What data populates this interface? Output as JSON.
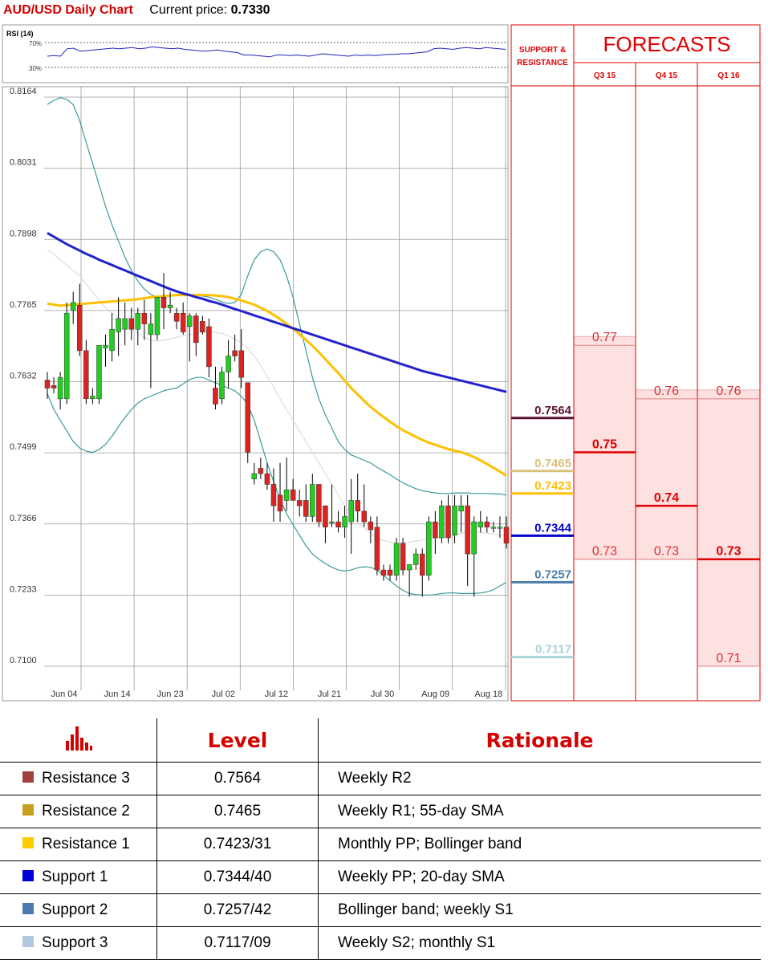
{
  "header": {
    "title": "AUD/USD Daily Chart",
    "price_label": "Current price:",
    "price_value": "0.7330"
  },
  "colors": {
    "bull": "#22cc22",
    "bear": "#dd2222",
    "sma200": "#2222cc",
    "sma55": "#ffc000",
    "sma20": "#dddddd",
    "bands": "#3a9a9a",
    "forecast_fill": "#fde0e0",
    "forecast_line": "#e00000"
  },
  "chart_data": {
    "type": "candlestick",
    "title": "AUD/USD Daily Chart",
    "ylim": [
      0.71,
      0.8164
    ],
    "y_ticks": [
      "0.8164",
      "0.8031",
      "0.7898",
      "0.7765",
      "0.7632",
      "0.7499",
      "0.7366",
      "0.7233",
      "0.7100"
    ],
    "x_ticks": [
      "Jun 04",
      "Jun 14",
      "Jun 23",
      "Jul 02",
      "Jul 12",
      "Jul 21",
      "Jul 30",
      "Aug 09",
      "Aug 18"
    ],
    "rsi": {
      "label": "RSI (14)",
      "levels": [
        "70%",
        "30%"
      ],
      "values": [
        48,
        49,
        48,
        60,
        61,
        56,
        57,
        58,
        59,
        60,
        61,
        60,
        61,
        62,
        60,
        61,
        63,
        62,
        61,
        60,
        61,
        59,
        58,
        57,
        56,
        57,
        58,
        56,
        55,
        54,
        50,
        50,
        49,
        48,
        47,
        50,
        50,
        49,
        50,
        49,
        48,
        50,
        52,
        51,
        50,
        49,
        48,
        50,
        49,
        50,
        49,
        50,
        51,
        51,
        52,
        52,
        53,
        54,
        55,
        60,
        61,
        60,
        59,
        61,
        62,
        61,
        60,
        62,
        61,
        60,
        59
      ]
    },
    "candles": [
      {
        "o": 0.7635,
        "h": 0.765,
        "l": 0.76,
        "c": 0.762
      },
      {
        "o": 0.7625,
        "h": 0.764,
        "l": 0.761,
        "c": 0.762
      },
      {
        "o": 0.76,
        "h": 0.765,
        "l": 0.758,
        "c": 0.764
      },
      {
        "o": 0.76,
        "h": 0.778,
        "l": 0.759,
        "c": 0.776
      },
      {
        "o": 0.7765,
        "h": 0.78,
        "l": 0.774,
        "c": 0.778
      },
      {
        "o": 0.7775,
        "h": 0.7815,
        "l": 0.768,
        "c": 0.769
      },
      {
        "o": 0.769,
        "h": 0.771,
        "l": 0.759,
        "c": 0.76
      },
      {
        "o": 0.76,
        "h": 0.762,
        "l": 0.759,
        "c": 0.7605
      },
      {
        "o": 0.76,
        "h": 0.77,
        "l": 0.759,
        "c": 0.77
      },
      {
        "o": 0.7695,
        "h": 0.772,
        "l": 0.766,
        "c": 0.77
      },
      {
        "o": 0.769,
        "h": 0.776,
        "l": 0.767,
        "c": 0.773
      },
      {
        "o": 0.7725,
        "h": 0.779,
        "l": 0.768,
        "c": 0.775
      },
      {
        "o": 0.773,
        "h": 0.778,
        "l": 0.77,
        "c": 0.775
      },
      {
        "o": 0.775,
        "h": 0.777,
        "l": 0.771,
        "c": 0.773
      },
      {
        "o": 0.773,
        "h": 0.777,
        "l": 0.77,
        "c": 0.776
      },
      {
        "o": 0.776,
        "h": 0.7785,
        "l": 0.771,
        "c": 0.774
      },
      {
        "o": 0.772,
        "h": 0.776,
        "l": 0.762,
        "c": 0.774
      },
      {
        "o": 0.772,
        "h": 0.779,
        "l": 0.771,
        "c": 0.779
      },
      {
        "o": 0.779,
        "h": 0.7835,
        "l": 0.773,
        "c": 0.777
      },
      {
        "o": 0.777,
        "h": 0.78,
        "l": 0.776,
        "c": 0.7775
      },
      {
        "o": 0.776,
        "h": 0.777,
        "l": 0.773,
        "c": 0.7745
      },
      {
        "o": 0.776,
        "h": 0.778,
        "l": 0.772,
        "c": 0.7725
      },
      {
        "o": 0.7735,
        "h": 0.776,
        "l": 0.767,
        "c": 0.7755
      },
      {
        "o": 0.7755,
        "h": 0.776,
        "l": 0.768,
        "c": 0.7705
      },
      {
        "o": 0.7745,
        "h": 0.7755,
        "l": 0.772,
        "c": 0.7725
      },
      {
        "o": 0.7735,
        "h": 0.775,
        "l": 0.764,
        "c": 0.766
      },
      {
        "o": 0.762,
        "h": 0.766,
        "l": 0.758,
        "c": 0.759
      },
      {
        "o": 0.76,
        "h": 0.766,
        "l": 0.759,
        "c": 0.765
      },
      {
        "o": 0.765,
        "h": 0.771,
        "l": 0.762,
        "c": 0.768
      },
      {
        "o": 0.769,
        "h": 0.772,
        "l": 0.767,
        "c": 0.768
      },
      {
        "o": 0.769,
        "h": 0.773,
        "l": 0.762,
        "c": 0.764
      },
      {
        "o": 0.763,
        "h": 0.763,
        "l": 0.748,
        "c": 0.75
      },
      {
        "o": 0.745,
        "h": 0.748,
        "l": 0.744,
        "c": 0.746
      },
      {
        "o": 0.747,
        "h": 0.749,
        "l": 0.745,
        "c": 0.746
      },
      {
        "o": 0.746,
        "h": 0.748,
        "l": 0.743,
        "c": 0.744
      },
      {
        "o": 0.744,
        "h": 0.747,
        "l": 0.737,
        "c": 0.74
      },
      {
        "o": 0.742,
        "h": 0.748,
        "l": 0.737,
        "c": 0.739
      },
      {
        "o": 0.741,
        "h": 0.749,
        "l": 0.739,
        "c": 0.743
      },
      {
        "o": 0.743,
        "h": 0.745,
        "l": 0.741,
        "c": 0.741
      },
      {
        "o": 0.741,
        "h": 0.743,
        "l": 0.738,
        "c": 0.74
      },
      {
        "o": 0.741,
        "h": 0.744,
        "l": 0.737,
        "c": 0.738
      },
      {
        "o": 0.738,
        "h": 0.746,
        "l": 0.737,
        "c": 0.744
      },
      {
        "o": 0.744,
        "h": 0.744,
        "l": 0.736,
        "c": 0.737
      },
      {
        "o": 0.74,
        "h": 0.74,
        "l": 0.733,
        "c": 0.736
      },
      {
        "o": 0.737,
        "h": 0.744,
        "l": 0.736,
        "c": 0.737
      },
      {
        "o": 0.737,
        "h": 0.739,
        "l": 0.735,
        "c": 0.736
      },
      {
        "o": 0.736,
        "h": 0.74,
        "l": 0.734,
        "c": 0.738
      },
      {
        "o": 0.737,
        "h": 0.745,
        "l": 0.731,
        "c": 0.741
      },
      {
        "o": 0.741,
        "h": 0.746,
        "l": 0.737,
        "c": 0.739
      },
      {
        "o": 0.739,
        "h": 0.744,
        "l": 0.736,
        "c": 0.737
      },
      {
        "o": 0.737,
        "h": 0.738,
        "l": 0.733,
        "c": 0.7355
      },
      {
        "o": 0.736,
        "h": 0.738,
        "l": 0.727,
        "c": 0.728
      },
      {
        "o": 0.728,
        "h": 0.729,
        "l": 0.726,
        "c": 0.727
      },
      {
        "o": 0.728,
        "h": 0.729,
        "l": 0.726,
        "c": 0.727
      },
      {
        "o": 0.727,
        "h": 0.734,
        "l": 0.726,
        "c": 0.733
      },
      {
        "o": 0.733,
        "h": 0.734,
        "l": 0.727,
        "c": 0.728
      },
      {
        "o": 0.728,
        "h": 0.729,
        "l": 0.723,
        "c": 0.729
      },
      {
        "o": 0.729,
        "h": 0.732,
        "l": 0.728,
        "c": 0.731
      },
      {
        "o": 0.731,
        "h": 0.732,
        "l": 0.723,
        "c": 0.727
      },
      {
        "o": 0.727,
        "h": 0.738,
        "l": 0.726,
        "c": 0.737
      },
      {
        "o": 0.737,
        "h": 0.739,
        "l": 0.731,
        "c": 0.734
      },
      {
        "o": 0.734,
        "h": 0.741,
        "l": 0.733,
        "c": 0.74
      },
      {
        "o": 0.74,
        "h": 0.742,
        "l": 0.733,
        "c": 0.734
      },
      {
        "o": 0.7345,
        "h": 0.742,
        "l": 0.733,
        "c": 0.74
      },
      {
        "o": 0.739,
        "h": 0.742,
        "l": 0.735,
        "c": 0.74
      },
      {
        "o": 0.74,
        "h": 0.742,
        "l": 0.725,
        "c": 0.731
      },
      {
        "o": 0.731,
        "h": 0.738,
        "l": 0.723,
        "c": 0.737
      },
      {
        "o": 0.736,
        "h": 0.739,
        "l": 0.735,
        "c": 0.737
      },
      {
        "o": 0.737,
        "h": 0.738,
        "l": 0.735,
        "c": 0.736
      },
      {
        "o": 0.736,
        "h": 0.737,
        "l": 0.735,
        "c": 0.736
      },
      {
        "o": 0.736,
        "h": 0.738,
        "l": 0.734,
        "c": 0.736
      },
      {
        "o": 0.736,
        "h": 0.738,
        "l": 0.732,
        "c": 0.733
      }
    ],
    "sma200": [
      0.791,
      0.7903,
      0.7896,
      0.7889,
      0.7883,
      0.7877,
      0.7871,
      0.7866,
      0.786,
      0.7855,
      0.785,
      0.7845,
      0.784,
      0.7835,
      0.783,
      0.7825,
      0.782,
      0.7815,
      0.781,
      0.7805,
      0.7801,
      0.7797,
      0.7794,
      0.779,
      0.7787,
      0.7783,
      0.778,
      0.7776,
      0.7772,
      0.7768,
      0.7764,
      0.776,
      0.7756,
      0.7752,
      0.7748,
      0.7744,
      0.774,
      0.7736,
      0.7732,
      0.7728,
      0.7724,
      0.772,
      0.7716,
      0.7712,
      0.7708,
      0.7704,
      0.77,
      0.7696,
      0.7692,
      0.7688,
      0.7684,
      0.768,
      0.7676,
      0.7672,
      0.7668,
      0.7664,
      0.766,
      0.7656,
      0.7652,
      0.7649,
      0.7646,
      0.7643,
      0.764,
      0.7637,
      0.7634,
      0.7631,
      0.7628,
      0.7625,
      0.7622,
      0.7619,
      0.7616,
      0.7613
    ],
    "sma55": [
      0.7778,
      0.7776,
      0.7774,
      0.7775,
      0.7776,
      0.7777,
      0.7778,
      0.7779,
      0.778,
      0.7781,
      0.7782,
      0.7783,
      0.7784,
      0.7785,
      0.7786,
      0.7788,
      0.779,
      0.7791,
      0.7792,
      0.7793,
      0.7794,
      0.7794,
      0.7794,
      0.7794,
      0.7794,
      0.7794,
      0.7793,
      0.7792,
      0.779,
      0.7787,
      0.7784,
      0.778,
      0.7776,
      0.777,
      0.7764,
      0.7757,
      0.7749,
      0.774,
      0.7731,
      0.7721,
      0.771,
      0.7699,
      0.7687,
      0.7674,
      0.7661,
      0.7648,
      0.7634,
      0.762,
      0.7608,
      0.7596,
      0.7585,
      0.7575,
      0.7566,
      0.7557,
      0.7549,
      0.7541,
      0.7535,
      0.7529,
      0.7523,
      0.7518,
      0.7514,
      0.751,
      0.7506,
      0.7503,
      0.75,
      0.7496,
      0.7491,
      0.7485,
      0.7478,
      0.7471,
      0.7464,
      0.7456
    ],
    "sma20": [
      0.788,
      0.787,
      0.786,
      0.785,
      0.784,
      0.783,
      0.7815,
      0.78,
      0.7785,
      0.777,
      0.776,
      0.775,
      0.774,
      0.773,
      0.7722,
      0.7715,
      0.771,
      0.7708,
      0.771,
      0.7712,
      0.7715,
      0.7718,
      0.772,
      0.7722,
      0.7724,
      0.7726,
      0.7724,
      0.7722,
      0.7718,
      0.7712,
      0.7704,
      0.7694,
      0.768,
      0.7662,
      0.7642,
      0.7622,
      0.76,
      0.758,
      0.756,
      0.754,
      0.752,
      0.75,
      0.748,
      0.746,
      0.744,
      0.742,
      0.74,
      0.7385,
      0.737,
      0.7358,
      0.7348,
      0.734,
      0.7335,
      0.7332,
      0.733,
      0.733,
      0.7332,
      0.7334,
      0.7336,
      0.7338,
      0.734,
      0.7342,
      0.7344,
      0.7346,
      0.7348,
      0.735,
      0.7351,
      0.735,
      0.7349,
      0.7347,
      0.7345,
      0.7344
    ],
    "band_upper": [
      0.815,
      0.8158,
      0.8163,
      0.816,
      0.815,
      0.812,
      0.808,
      0.804,
      0.8,
      0.796,
      0.7925,
      0.7895,
      0.7865,
      0.784,
      0.782,
      0.7805,
      0.7795,
      0.779,
      0.779,
      0.7792,
      0.7795,
      0.7795,
      0.7795,
      0.7794,
      0.7792,
      0.779,
      0.7786,
      0.7781,
      0.7778,
      0.778,
      0.7795,
      0.783,
      0.786,
      0.7875,
      0.788,
      0.7875,
      0.786,
      0.783,
      0.779,
      0.774,
      0.769,
      0.764,
      0.76,
      0.757,
      0.7545,
      0.752,
      0.7505,
      0.7495,
      0.749,
      0.7485,
      0.748,
      0.7472,
      0.7465,
      0.7458,
      0.745,
      0.7443,
      0.7437,
      0.7432,
      0.7428,
      0.7426,
      0.7424,
      0.7423,
      0.7423,
      0.7424,
      0.7424,
      0.7424,
      0.7423,
      0.7423,
      0.7423,
      0.7422,
      0.7422,
      0.742
    ],
    "band_lower": [
      0.761,
      0.758,
      0.756,
      0.754,
      0.752,
      0.7508,
      0.7502,
      0.75,
      0.7505,
      0.7515,
      0.753,
      0.7548,
      0.7565,
      0.758,
      0.7592,
      0.76,
      0.7605,
      0.761,
      0.7615,
      0.7618,
      0.762,
      0.7628,
      0.7636,
      0.764,
      0.764,
      0.7635,
      0.763,
      0.7625,
      0.762,
      0.7615,
      0.7605,
      0.759,
      0.756,
      0.752,
      0.748,
      0.7445,
      0.7412,
      0.7385,
      0.7365,
      0.7345,
      0.7325,
      0.731,
      0.73,
      0.7292,
      0.7285,
      0.728,
      0.7278,
      0.728,
      0.7284,
      0.7286,
      0.7285,
      0.728,
      0.727,
      0.726,
      0.725,
      0.7242,
      0.7236,
      0.7234,
      0.7233,
      0.7233,
      0.7234,
      0.7236,
      0.7237,
      0.7237,
      0.7236,
      0.7236,
      0.7236,
      0.7237,
      0.7239,
      0.7243,
      0.725,
      0.7257
    ],
    "levels": [
      {
        "value": 0.7564,
        "label": "0.7564",
        "color": "#5a1030"
      },
      {
        "value": 0.7465,
        "label": "0.7465",
        "color": "#d9c07a"
      },
      {
        "value": 0.7423,
        "label": "0.7423",
        "color": "#ffc000"
      },
      {
        "value": 0.7344,
        "label": "0.7344",
        "color": "#0000cc"
      },
      {
        "value": 0.7257,
        "label": "0.7257",
        "color": "#4a7ea8"
      },
      {
        "value": 0.7117,
        "label": "0.7117",
        "color": "#a8d4d8"
      }
    ]
  },
  "forecasts": {
    "title": "FORECASTS",
    "sr_label": "SUPPORT &",
    "sr_label2": "RESISTANCE",
    "quarters": [
      "Q3 15",
      "Q4 15",
      "Q1 16"
    ],
    "q3": {
      "high": "0.77",
      "mid": "0.75",
      "low": "0.73",
      "high_v": 0.77,
      "mid_v": 0.75,
      "low_v": 0.73
    },
    "q4": {
      "high": "0.76",
      "mid": "0.74",
      "low": "0.73",
      "high_v": 0.76,
      "mid_v": 0.74,
      "low_v": 0.73
    },
    "q1": {
      "high": "0.76",
      "mid": "0.73",
      "low": "0.71",
      "high_v": 0.76,
      "mid_v": 0.73,
      "low_v": 0.71
    }
  },
  "table": {
    "header_level": "Level",
    "header_rationale": "Rationale",
    "rows": [
      {
        "name": "Resistance 3",
        "level": "0.7564",
        "rationale": "Weekly R2",
        "color": "#a04040"
      },
      {
        "name": "Resistance 2",
        "level": "0.7465",
        "rationale": "Weekly R1; 55-day SMA",
        "color": "#c8a020"
      },
      {
        "name": "Resistance 1",
        "level": "0.7423/31",
        "rationale": "Monthly PP; Bollinger band",
        "color": "#ffcc00"
      },
      {
        "name": "Support 1",
        "level": "0.7344/40",
        "rationale": "Weekly PP; 20-day SMA",
        "color": "#0000dd"
      },
      {
        "name": "Support 2",
        "level": "0.7257/42",
        "rationale": "Bollinger band; weekly S1",
        "color": "#4a7ab0"
      },
      {
        "name": "Support 3",
        "level": "0.7117/09",
        "rationale": "Weekly S2; monthly S1",
        "color": "#b0c8e0"
      }
    ]
  }
}
